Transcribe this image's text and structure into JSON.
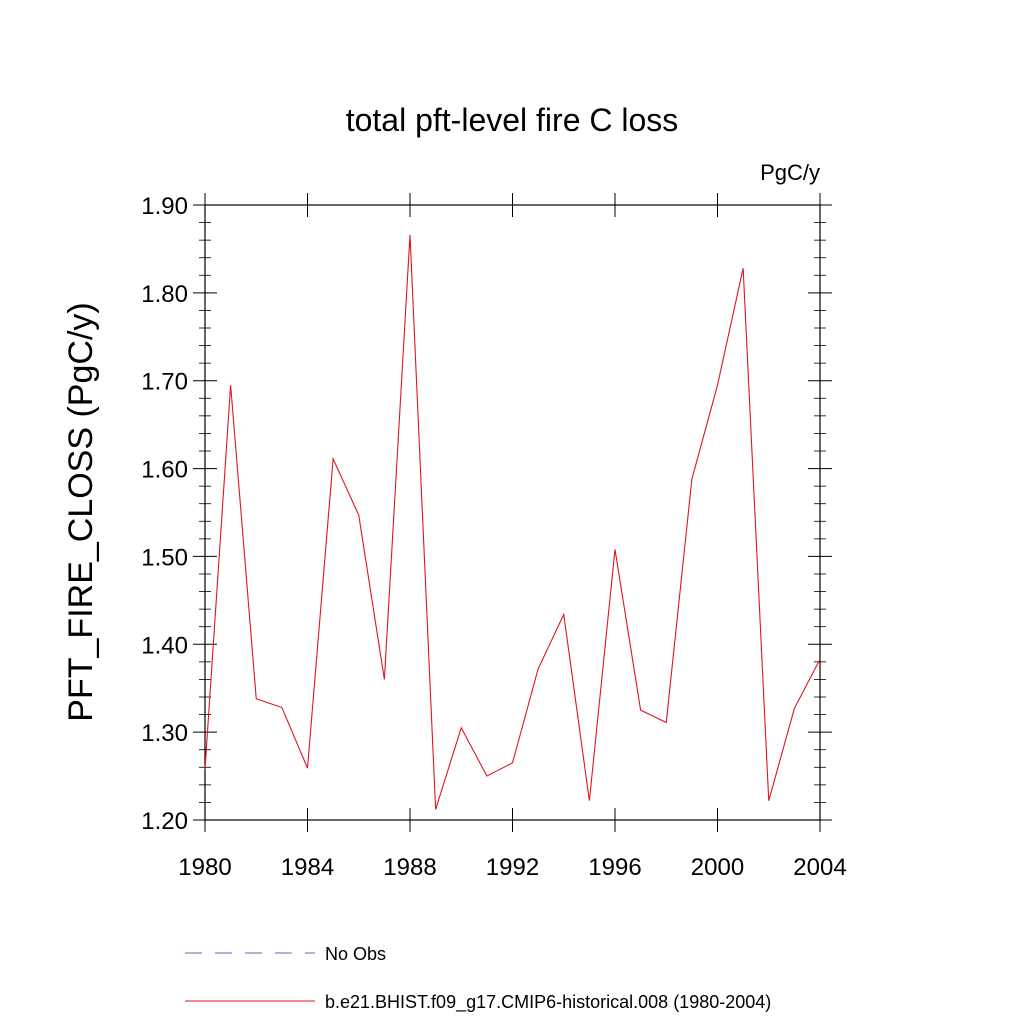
{
  "chart_data": {
    "type": "line",
    "title": "total pft-level fire C loss",
    "units_label": "PgC/y",
    "xlabel": "",
    "ylabel": "PFT_FIRE_CLOSS  (PgC/y)",
    "xlim": [
      1980,
      2004
    ],
    "ylim": [
      1.2,
      1.9
    ],
    "x_ticks": [
      1980,
      1984,
      1988,
      1992,
      1996,
      2000,
      2004
    ],
    "y_ticks": [
      1.2,
      1.3,
      1.4,
      1.5,
      1.6,
      1.7,
      1.8,
      1.9
    ],
    "y_tick_labels": [
      "1.20",
      "1.30",
      "1.40",
      "1.50",
      "1.60",
      "1.70",
      "1.80",
      "1.90"
    ],
    "series": [
      {
        "name": "b.e21.BHIST.f09_g17.CMIP6-historical.008 (1980-2004)",
        "color": "#e0141e",
        "style": "solid",
        "x": [
          1980,
          1981,
          1982,
          1983,
          1984,
          1985,
          1986,
          1987,
          1988,
          1989,
          1990,
          1991,
          1992,
          1993,
          1994,
          1995,
          1996,
          1997,
          1998,
          1999,
          2000,
          2001,
          2002,
          2003,
          2004
        ],
        "values": [
          1.258,
          1.695,
          1.338,
          1.328,
          1.259,
          1.611,
          1.547,
          1.36,
          1.866,
          1.212,
          1.305,
          1.25,
          1.265,
          1.372,
          1.434,
          1.222,
          1.508,
          1.325,
          1.311,
          1.588,
          1.695,
          1.828,
          1.222,
          1.327,
          1.383
        ]
      }
    ],
    "legend": [
      {
        "label": "No Obs",
        "color": "#6666bb",
        "style": "dashed"
      },
      {
        "label": "b.e21.BHIST.f09_g17.CMIP6-historical.008 (1980-2004)",
        "color": "#e0141e",
        "style": "solid"
      }
    ]
  }
}
